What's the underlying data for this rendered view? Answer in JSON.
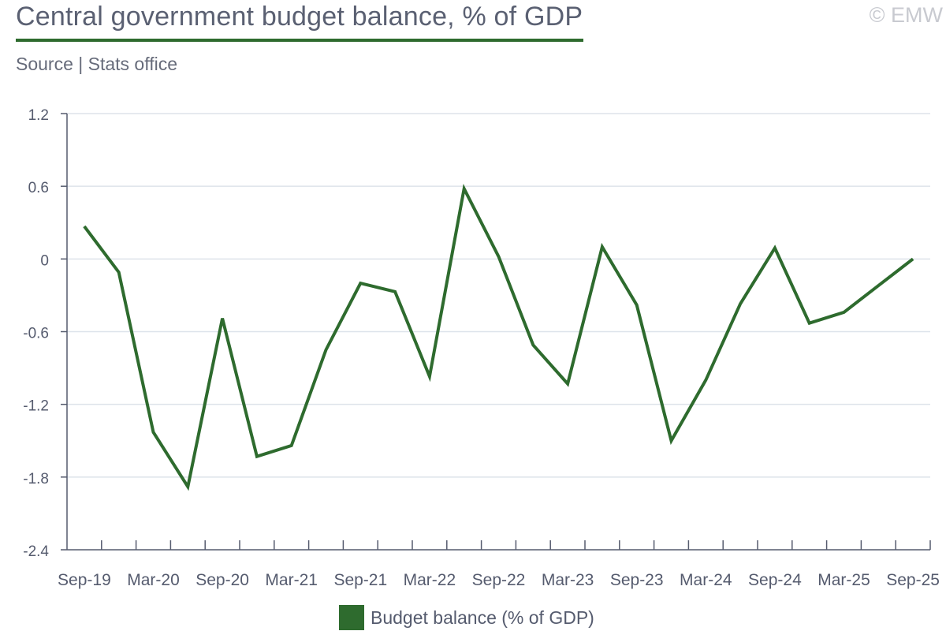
{
  "header": {
    "title": "Central government budget balance, % of GDP",
    "subtitle": "Source | Stats office",
    "copyright": "© EMW"
  },
  "colors": {
    "series": "#2e6b2e",
    "grid": "#dde3ea",
    "axis": "#555b6e"
  },
  "chart_data": {
    "type": "line",
    "title": "Central government budget balance, % of GDP",
    "xlabel": "",
    "ylabel": "",
    "ylim": [
      -2.4,
      1.2
    ],
    "y_ticks": [
      "1.2",
      "0.6",
      "0",
      "-0.6",
      "-1.2",
      "-1.8",
      "-2.4"
    ],
    "y_tick_values": [
      1.2,
      0.6,
      0,
      -0.6,
      -1.2,
      -1.8,
      -2.4
    ],
    "x_labels": [
      "Sep-19",
      "Mar-20",
      "Sep-20",
      "Mar-21",
      "Sep-21",
      "Mar-22",
      "Sep-22",
      "Mar-23",
      "Sep-23",
      "Mar-24",
      "Sep-24",
      "Mar-25",
      "Sep-25"
    ],
    "x_label_every": 2,
    "grid": true,
    "legend": "bottom-center",
    "categories": [
      "Sep-19",
      "Dec-19",
      "Mar-20",
      "Jun-20",
      "Sep-20",
      "Dec-20",
      "Mar-21",
      "Jun-21",
      "Sep-21",
      "Dec-21",
      "Mar-22",
      "Jun-22",
      "Sep-22",
      "Dec-22",
      "Mar-23",
      "Jun-23",
      "Sep-23",
      "Dec-23",
      "Mar-24",
      "Jun-24",
      "Sep-24",
      "Dec-24",
      "Mar-25",
      "Jun-25",
      "Sep-25"
    ],
    "series": [
      {
        "name": "Budget balance (% of GDP)",
        "values": [
          0.27,
          -0.11,
          -1.43,
          -1.88,
          -0.49,
          -1.63,
          -1.54,
          -0.75,
          -0.2,
          -0.27,
          -0.97,
          0.58,
          0.02,
          -0.71,
          -1.03,
          0.1,
          -0.38,
          -1.5,
          -1.0,
          -0.37,
          0.09,
          -0.53,
          -0.44,
          -0.22,
          0.0
        ]
      }
    ]
  }
}
